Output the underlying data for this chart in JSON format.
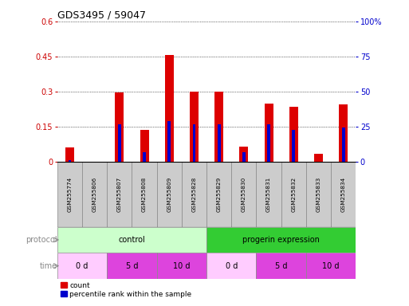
{
  "title": "GDS3495 / 59047",
  "samples": [
    "GSM255774",
    "GSM255806",
    "GSM255807",
    "GSM255808",
    "GSM255809",
    "GSM255828",
    "GSM255829",
    "GSM255830",
    "GSM255831",
    "GSM255832",
    "GSM255833",
    "GSM255834"
  ],
  "red_values": [
    0.06,
    0.0,
    0.295,
    0.135,
    0.455,
    0.3,
    0.3,
    0.065,
    0.25,
    0.235,
    0.035,
    0.245
  ],
  "blue_values": [
    0.005,
    0.0,
    0.16,
    0.04,
    0.175,
    0.16,
    0.16,
    0.04,
    0.16,
    0.135,
    0.0,
    0.145
  ],
  "ylim_left": [
    0,
    0.6
  ],
  "ylim_right": [
    0,
    100
  ],
  "yticks_left": [
    0,
    0.15,
    0.3,
    0.45,
    0.6
  ],
  "yticks_right": [
    0,
    25,
    50,
    75,
    100
  ],
  "ytick_labels_left": [
    "0",
    "0.15",
    "0.3",
    "0.45",
    "0.6"
  ],
  "ytick_labels_right": [
    "0",
    "25",
    "50",
    "75",
    "100%"
  ],
  "protocol_groups": [
    {
      "label": "control",
      "start": 0,
      "end": 6,
      "color": "#ccffcc"
    },
    {
      "label": "progerin expression",
      "start": 6,
      "end": 12,
      "color": "#33cc33"
    }
  ],
  "time_groups": [
    {
      "label": "0 d",
      "start": 0,
      "end": 2,
      "color": "#ffccff"
    },
    {
      "label": "5 d",
      "start": 2,
      "end": 4,
      "color": "#dd44dd"
    },
    {
      "label": "10 d",
      "start": 4,
      "end": 6,
      "color": "#dd44dd"
    },
    {
      "label": "0 d",
      "start": 6,
      "end": 8,
      "color": "#ffccff"
    },
    {
      "label": "5 d",
      "start": 8,
      "end": 10,
      "color": "#dd44dd"
    },
    {
      "label": "10 d",
      "start": 10,
      "end": 12,
      "color": "#dd44dd"
    }
  ],
  "red_bar_width": 0.35,
  "blue_bar_width": 0.12,
  "red_color": "#dd0000",
  "blue_color": "#0000cc",
  "bg_color": "#ffffff",
  "label_bg_color": "#cccccc"
}
